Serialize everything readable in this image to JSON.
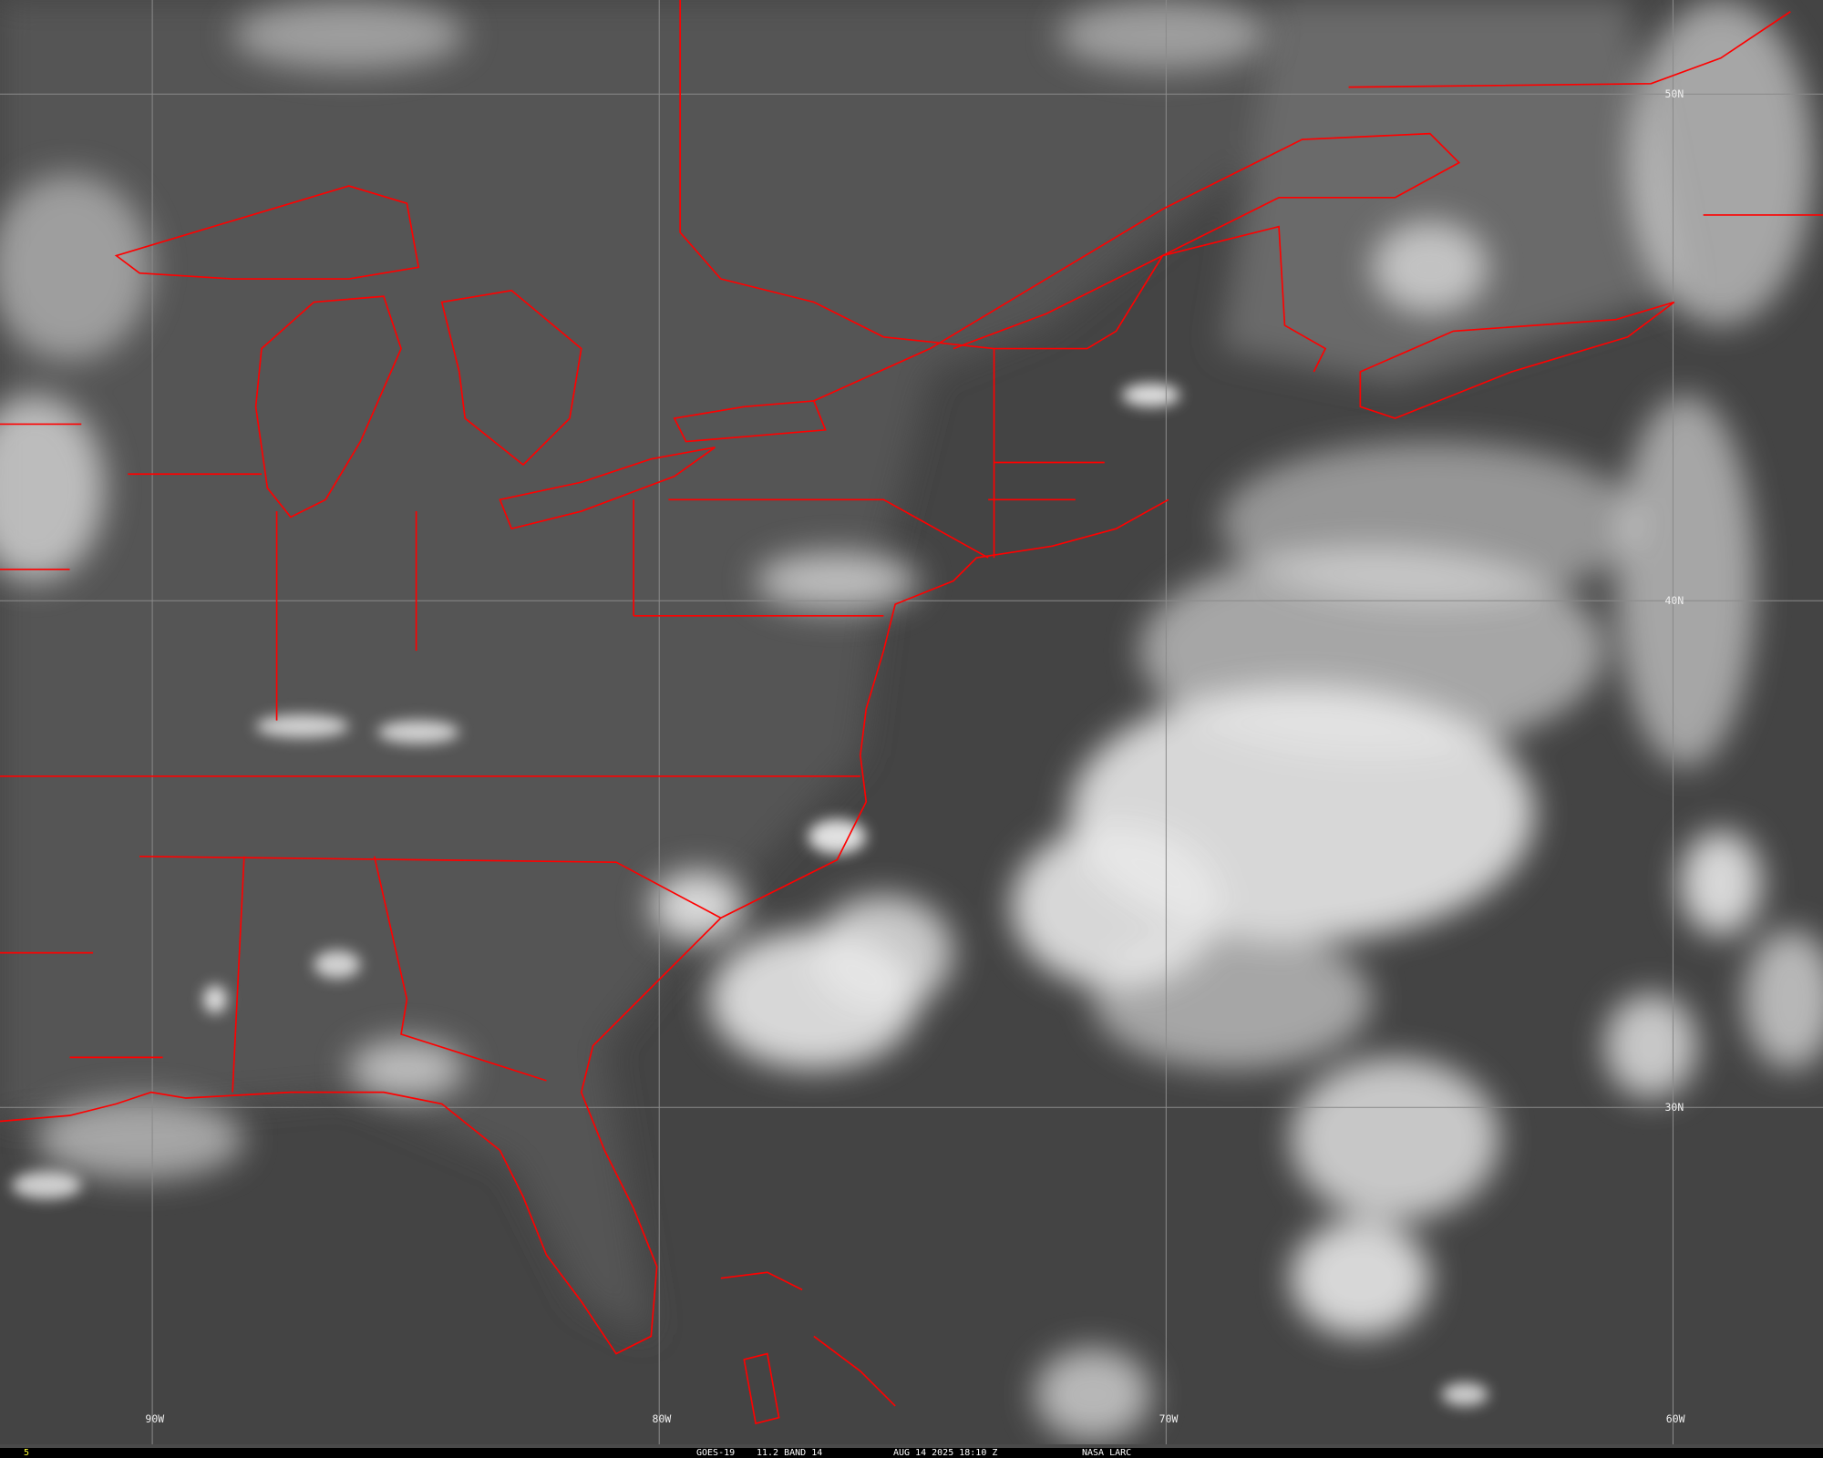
{
  "image": {
    "satellite": "GOES-19",
    "product": "11.2 BAND 14",
    "datetime": "AUG 14 2025 18:10 Z",
    "credit": "NASA LARC",
    "frame_number": "5",
    "boundary_color": "#ff0000",
    "frame_number_color": "#ffff33"
  },
  "grid": {
    "longitude_labels": [
      "90W",
      "80W",
      "70W",
      "60W"
    ],
    "latitude_labels": [
      "50N",
      "40N",
      "30N"
    ]
  }
}
